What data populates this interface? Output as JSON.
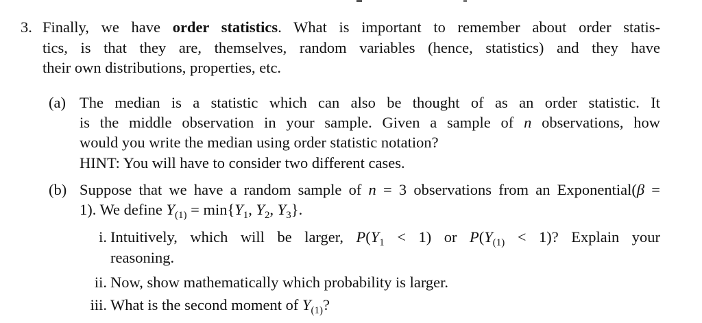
{
  "problem": {
    "number": "3.",
    "lines": [
      [
        {
          "t": "Finally, we have "
        },
        {
          "t": "order statistics",
          "s": "b"
        },
        {
          "t": ". What is important to remember about order statis-"
        }
      ],
      [
        {
          "t": "tics, is that they are, themselves, random variables (hence, statistics) and they have"
        }
      ],
      [
        {
          "t": "their own distributions, properties, etc."
        }
      ]
    ],
    "parts": [
      {
        "label": "(a)",
        "lines": [
          [
            {
              "t": "The median is a statistic which can also be thought of as an order statistic. It"
            }
          ],
          [
            {
              "t": "is the middle observation in your sample. Given a sample of "
            },
            {
              "t": "n",
              "s": "i"
            },
            {
              "t": " observations, how"
            }
          ],
          [
            {
              "t": "would you write the median using order statistic notation?"
            }
          ],
          [
            {
              "t": "HINT: You will have to consider two different cases."
            }
          ]
        ]
      },
      {
        "label": "(b)",
        "lines": [
          [
            {
              "t": "Suppose that we have a random sample of "
            },
            {
              "t": "n",
              "s": "i"
            },
            {
              "t": " = 3 observations from an Exponential("
            },
            {
              "t": "β",
              "s": "i"
            },
            {
              "t": " ="
            }
          ],
          [
            {
              "t": "1). We define "
            },
            {
              "t": "Y",
              "s": "i"
            },
            {
              "t": "(1)",
              "s": "sub"
            },
            {
              "t": " = min{"
            },
            {
              "t": "Y",
              "s": "i"
            },
            {
              "t": "1",
              "s": "sub"
            },
            {
              "t": ", "
            },
            {
              "t": "Y",
              "s": "i"
            },
            {
              "t": "2",
              "s": "sub"
            },
            {
              "t": ", "
            },
            {
              "t": "Y",
              "s": "i"
            },
            {
              "t": "3",
              "s": "sub"
            },
            {
              "t": "}."
            }
          ]
        ],
        "subparts": [
          {
            "label": "i.",
            "lines": [
              [
                {
                  "t": "Intuitively, which will be larger, "
                },
                {
                  "t": "P",
                  "s": "i"
                },
                {
                  "t": "("
                },
                {
                  "t": "Y",
                  "s": "i"
                },
                {
                  "t": "1",
                  "s": "sub"
                },
                {
                  "t": " < 1) or "
                },
                {
                  "t": "P",
                  "s": "i"
                },
                {
                  "t": "("
                },
                {
                  "t": "Y",
                  "s": "i"
                },
                {
                  "t": "(1)",
                  "s": "sub"
                },
                {
                  "t": " < 1)? Explain your"
                }
              ],
              [
                {
                  "t": "reasoning."
                }
              ]
            ]
          },
          {
            "label": "ii.",
            "lines": [
              [
                {
                  "t": "Now, show mathematically which probability is larger."
                }
              ]
            ]
          },
          {
            "label": "iii.",
            "lines": [
              [
                {
                  "t": "What is the second moment of "
                },
                {
                  "t": "Y",
                  "s": "i"
                },
                {
                  "t": "(1)",
                  "s": "sub"
                },
                {
                  "t": "?"
                }
              ]
            ]
          }
        ]
      }
    ]
  }
}
